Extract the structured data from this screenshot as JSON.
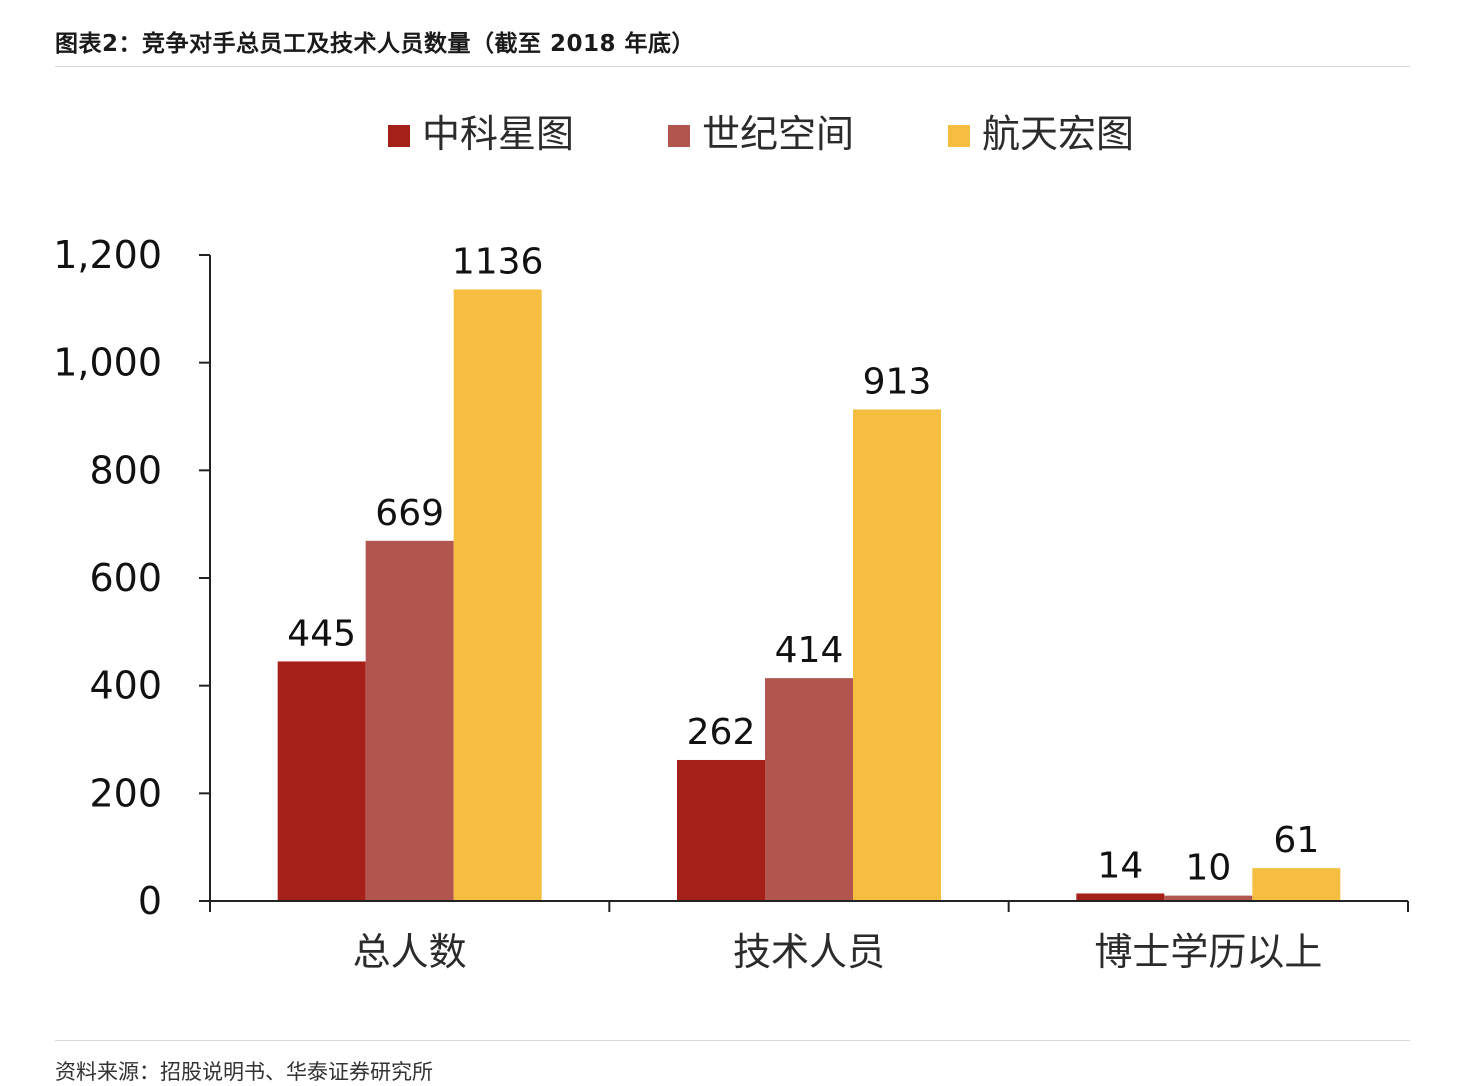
{
  "figure": {
    "title": "图表2：竞争对手总员工及技术人员数量（截至 2018 年底）",
    "source": "资料来源：招股说明书、华泰证券研究所"
  },
  "chart_data": {
    "type": "bar",
    "categories": [
      "总人数",
      "技术人员",
      "博士学历以上"
    ],
    "series": [
      {
        "name": "中科星图",
        "color": "#A52019",
        "values": [
          445,
          262,
          14
        ]
      },
      {
        "name": "世纪空间",
        "color": "#B2554E",
        "values": [
          669,
          414,
          10
        ]
      },
      {
        "name": "航天宏图",
        "color": "#F5BE41",
        "values": [
          1136,
          913,
          61
        ]
      }
    ],
    "ylim": [
      0,
      1200
    ],
    "yticks": [
      0,
      200,
      400,
      600,
      800,
      1000,
      1200
    ],
    "ytick_labels": [
      "0",
      "200",
      "400",
      "600",
      "800",
      "1,000",
      "1,200"
    ],
    "data_labels": [
      [
        "445",
        "262",
        "14"
      ],
      [
        "669",
        "414",
        "10"
      ],
      [
        "1136",
        "913",
        "61"
      ]
    ],
    "legend_position": "top-center",
    "grid": false,
    "xlabel": "",
    "ylabel": ""
  }
}
